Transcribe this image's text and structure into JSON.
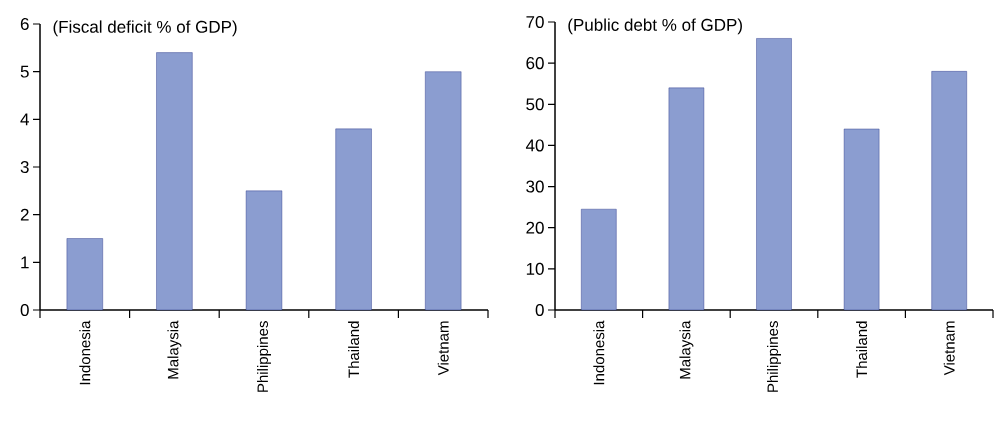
{
  "chart_data": [
    {
      "type": "bar",
      "title": "(Fiscal deficit % of GDP)",
      "categories": [
        "Indonesia",
        "Malaysia",
        "Philippines",
        "Thailand",
        "Vietnam"
      ],
      "values": [
        1.5,
        5.4,
        2.5,
        3.8,
        5.0
      ],
      "color": "#8b9dd0",
      "ylim": [
        0,
        6
      ],
      "yticks": [
        0,
        1,
        2,
        3,
        4,
        5,
        6
      ]
    },
    {
      "type": "bar",
      "title": "(Public debt % of GDP)",
      "categories": [
        "Indonesia",
        "Malaysia",
        "Philippines",
        "Thailand",
        "Vietnam"
      ],
      "values": [
        24.5,
        54,
        66,
        44,
        58
      ],
      "color": "#8b9dd0",
      "ylim": [
        0,
        70
      ],
      "yticks": [
        0,
        10,
        20,
        30,
        40,
        50,
        60,
        70
      ]
    }
  ]
}
